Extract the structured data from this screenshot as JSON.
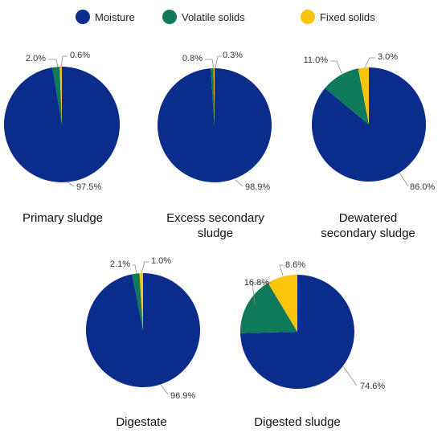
{
  "chart_data": {
    "type": "pie",
    "legend": {
      "placement": "top",
      "entries": [
        {
          "name": "Moisture",
          "color": "#0a2c8a"
        },
        {
          "name": "Volatile solids",
          "color": "#0e7a5a"
        },
        {
          "name": "Fixed solids",
          "color": "#fbc30a"
        }
      ]
    },
    "charts": [
      {
        "title_lines": [
          "Primary sludge"
        ],
        "slices": [
          {
            "name": "Moisture",
            "value": 97.5,
            "label": "97.5%"
          },
          {
            "name": "Volatile solids",
            "value": 2.0,
            "label": "2.0%"
          },
          {
            "name": "Fixed solids",
            "value": 0.6,
            "label": "0.6%"
          }
        ]
      },
      {
        "title_lines": [
          "Excess secondary",
          "sludge"
        ],
        "slices": [
          {
            "name": "Moisture",
            "value": 98.9,
            "label": "98.9%"
          },
          {
            "name": "Volatile solids",
            "value": 0.8,
            "label": "0.8%"
          },
          {
            "name": "Fixed solids",
            "value": 0.3,
            "label": "0.3%"
          }
        ]
      },
      {
        "title_lines": [
          "Dewatered",
          "secondary sludge"
        ],
        "slices": [
          {
            "name": "Moisture",
            "value": 86.0,
            "label": "86.0%"
          },
          {
            "name": "Volatile solids",
            "value": 11.0,
            "label": "11.0%"
          },
          {
            "name": "Fixed solids",
            "value": 3.0,
            "label": "3.0%"
          }
        ]
      },
      {
        "title_lines": [
          "Digestate"
        ],
        "slices": [
          {
            "name": "Moisture",
            "value": 96.9,
            "label": "96.9%"
          },
          {
            "name": "Volatile solids",
            "value": 2.1,
            "label": "2.1%"
          },
          {
            "name": "Fixed solids",
            "value": 1.0,
            "label": "1.0%"
          }
        ]
      },
      {
        "title_lines": [
          "Digested sludge"
        ],
        "slices": [
          {
            "name": "Moisture",
            "value": 74.6,
            "label": "74.6%"
          },
          {
            "name": "Volatile solids",
            "value": 16.8,
            "label": "16.8%"
          },
          {
            "name": "Fixed solids",
            "value": 8.6,
            "label": "8.6%"
          }
        ]
      }
    ]
  }
}
